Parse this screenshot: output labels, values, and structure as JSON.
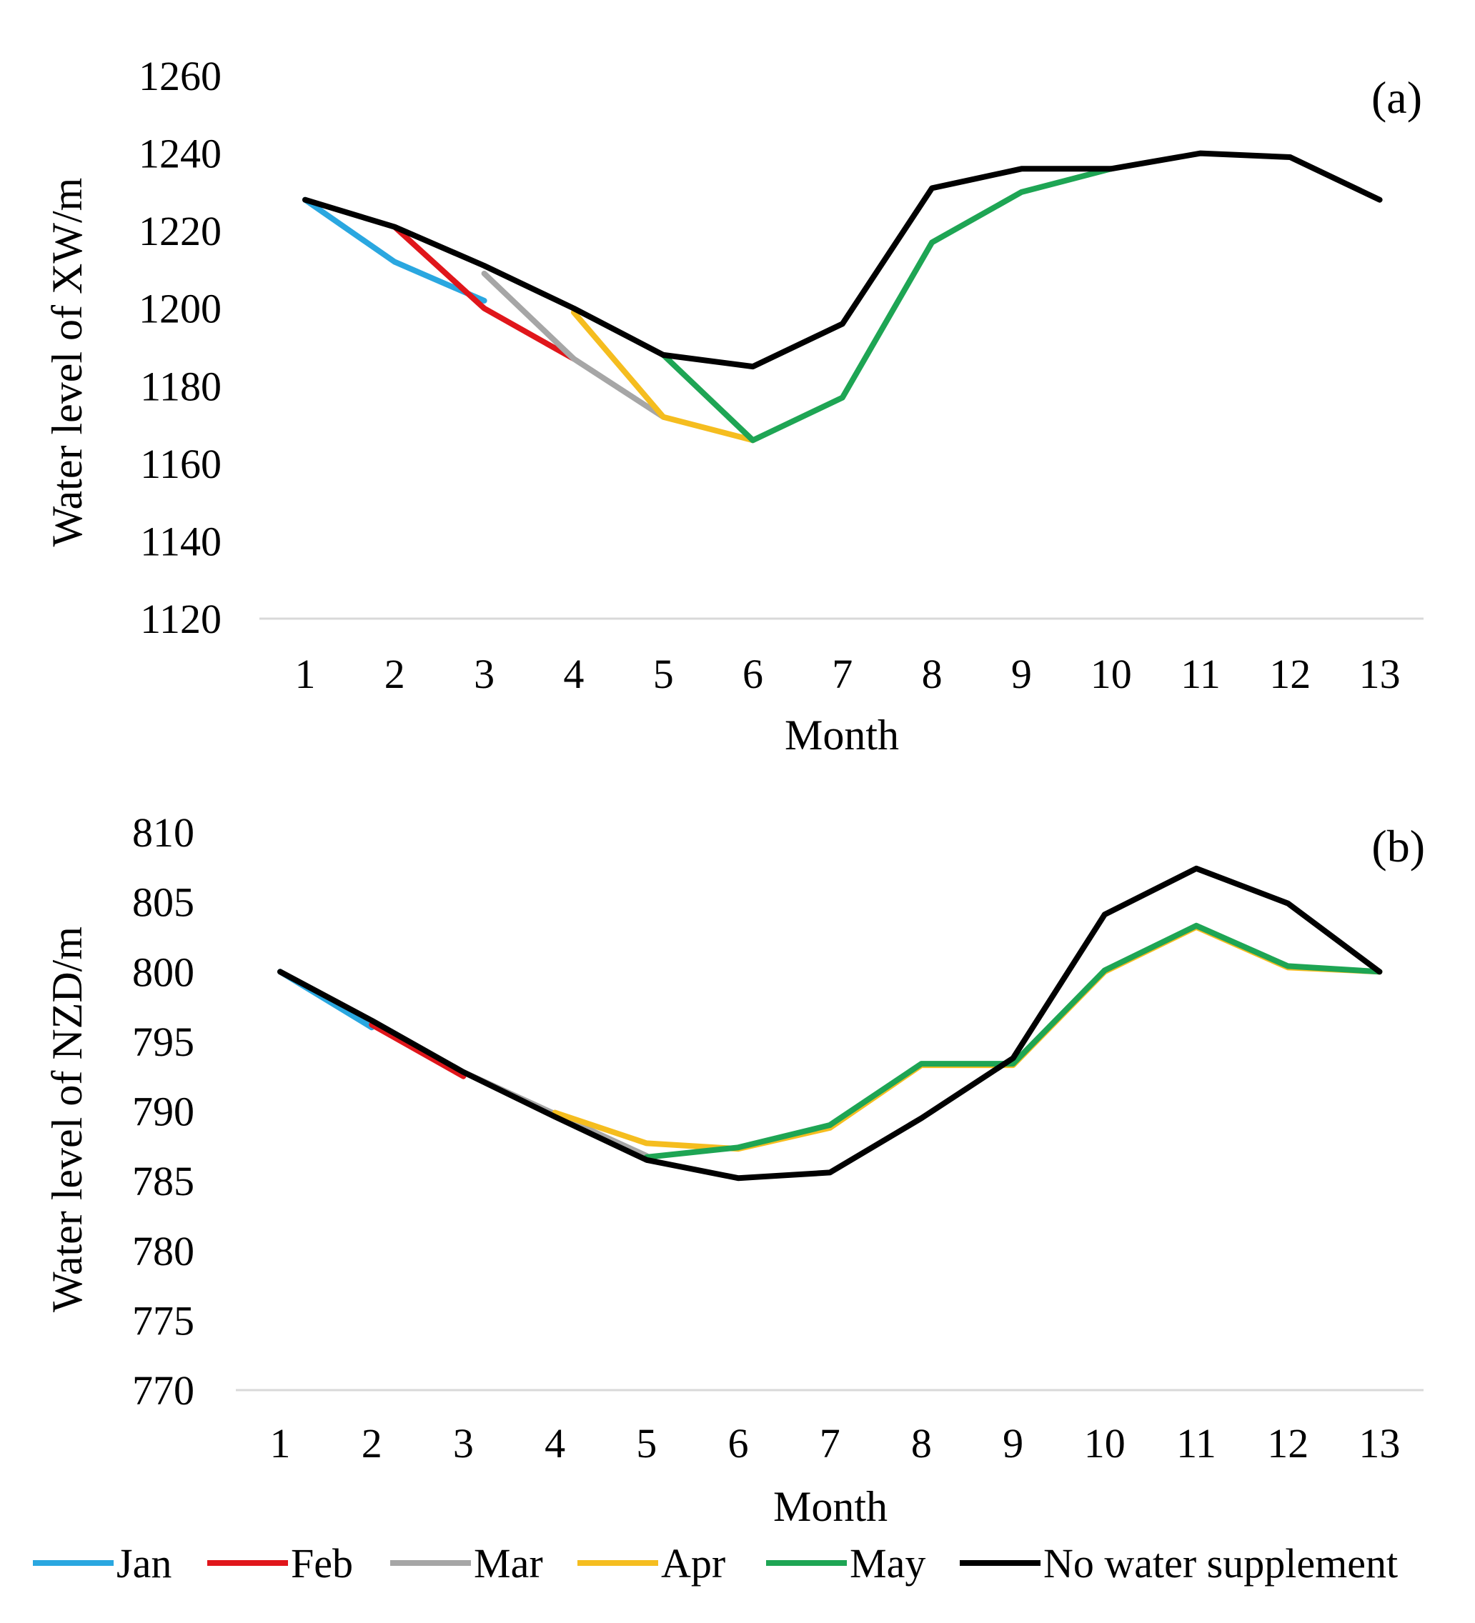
{
  "chart_data": [
    {
      "type": "line",
      "panel_label": "(a)",
      "xlabel": "Month",
      "ylabel": "Water level of XW/m",
      "categories": [
        "1",
        "2",
        "3",
        "4",
        "5",
        "6",
        "7",
        "8",
        "9",
        "10",
        "11",
        "12",
        "13"
      ],
      "yticks": [
        "1120",
        "1140",
        "1160",
        "1180",
        "1200",
        "1220",
        "1240",
        "1260"
      ],
      "ylim": [
        1120,
        1260
      ],
      "grid": false,
      "series": [
        {
          "name": "Jan",
          "color": "#2aa7e0",
          "values": [
            1228,
            1212,
            1202,
            null,
            null,
            null,
            null,
            null,
            null,
            null,
            null,
            null,
            null
          ]
        },
        {
          "name": "Feb",
          "color": "#e0161b",
          "values": [
            null,
            1221,
            1200,
            1187,
            null,
            null,
            null,
            null,
            null,
            null,
            null,
            null,
            null
          ]
        },
        {
          "name": "Mar",
          "color": "#a6a6a6",
          "values": [
            null,
            null,
            1209,
            1187,
            1172,
            null,
            null,
            null,
            null,
            null,
            null,
            null,
            null
          ]
        },
        {
          "name": "Apr",
          "color": "#f5bd1f",
          "values": [
            null,
            null,
            null,
            1199,
            1172,
            1166,
            null,
            null,
            null,
            null,
            null,
            null,
            null
          ]
        },
        {
          "name": "May",
          "color": "#1ea554",
          "values": [
            null,
            null,
            null,
            null,
            1188,
            1166,
            1177,
            1217,
            1230,
            1236,
            null,
            null,
            null
          ]
        },
        {
          "name": "No water supplement",
          "color": "#000000",
          "values": [
            1228,
            1221,
            1211,
            1200,
            1188,
            1185,
            1196,
            1231,
            1236,
            1236,
            1240,
            1239,
            1228
          ]
        }
      ]
    },
    {
      "type": "line",
      "panel_label": "(b)",
      "xlabel": "Month",
      "ylabel": "Water level of NZD/m",
      "categories": [
        "1",
        "2",
        "3",
        "4",
        "5",
        "6",
        "7",
        "8",
        "9",
        "10",
        "11",
        "12",
        "13"
      ],
      "yticks": [
        "770",
        "775",
        "780",
        "785",
        "790",
        "795",
        "800",
        "805",
        "810"
      ],
      "ylim": [
        770,
        810
      ],
      "grid": false,
      "series": [
        {
          "name": "Jan",
          "color": "#2aa7e0",
          "values": [
            800,
            796,
            null,
            null,
            null,
            null,
            null,
            null,
            null,
            null,
            null,
            null,
            null
          ]
        },
        {
          "name": "Feb",
          "color": "#e0161b",
          "values": [
            null,
            796.2,
            792.5,
            null,
            null,
            null,
            null,
            null,
            null,
            null,
            null,
            null,
            null
          ]
        },
        {
          "name": "Mar",
          "color": "#a6a6a6",
          "values": [
            null,
            null,
            792.8,
            789.8,
            786.8,
            null,
            null,
            null,
            null,
            null,
            null,
            null,
            null
          ]
        },
        {
          "name": "Apr",
          "color": "#f5bd1f",
          "values": [
            null,
            null,
            null,
            789.9,
            787.7,
            787.3,
            788.8,
            793.3,
            793.3,
            800,
            803.2,
            800.3,
            800
          ]
        },
        {
          "name": "May",
          "color": "#1ea554",
          "values": [
            null,
            null,
            null,
            null,
            786.7,
            787.4,
            789,
            793.4,
            793.4,
            800.1,
            803.3,
            800.4,
            800
          ]
        },
        {
          "name": "No water supplement",
          "color": "#000000",
          "values": [
            800,
            796.5,
            792.8,
            789.6,
            786.5,
            785.2,
            785.6,
            789.5,
            793.8,
            804.1,
            807.4,
            804.9,
            800
          ]
        }
      ]
    }
  ],
  "legend": [
    {
      "label": "Jan",
      "color": "#2aa7e0"
    },
    {
      "label": "Feb",
      "color": "#e0161b"
    },
    {
      "label": "Mar",
      "color": "#a6a6a6"
    },
    {
      "label": "Apr",
      "color": "#f5bd1f"
    },
    {
      "label": "May",
      "color": "#1ea554"
    },
    {
      "label": "No water supplement",
      "color": "#000000"
    }
  ]
}
